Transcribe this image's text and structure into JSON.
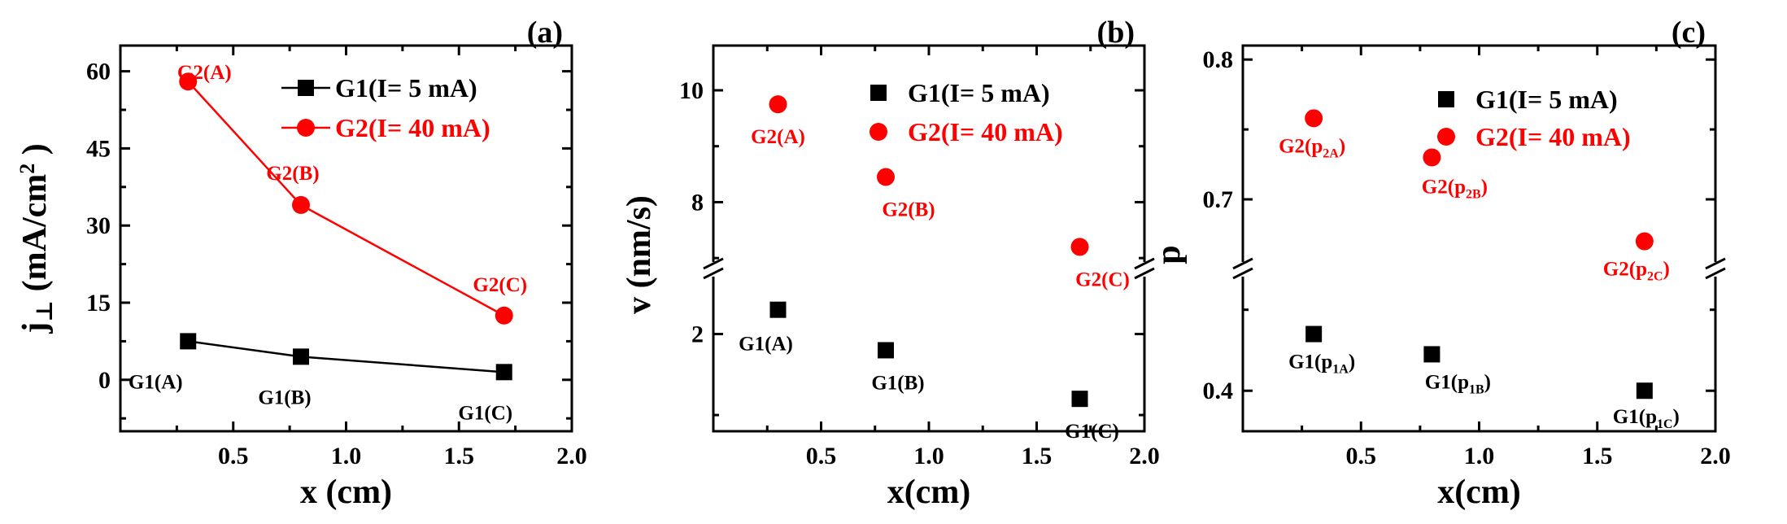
{
  "chart_data": [
    {
      "panel": "(a)",
      "type": "line",
      "xlabel": "x (cm)",
      "ylabel_main": "j",
      "ylabel_sub": "⊥",
      "ylabel_unit_open": " (mA/cm",
      "ylabel_sup": "2",
      "ylabel_unit_close": " )",
      "xlim": [
        0,
        2.0
      ],
      "ylim": [
        -10,
        65
      ],
      "xticks": [
        "0.5",
        "1.0",
        "1.5",
        "2.0"
      ],
      "yticks": [
        "0",
        "15",
        "30",
        "45",
        "60"
      ],
      "legend": [
        {
          "label": "G1(I= 5 mA)",
          "color": "#000000",
          "marker": "square"
        },
        {
          "label": "G2(I= 40 mA)",
          "color": "#ff0000",
          "marker": "circle"
        }
      ],
      "series": [
        {
          "name": "G1(I= 5 mA)",
          "color": "#000000",
          "marker": "square",
          "x": [
            0.3,
            0.8,
            1.7
          ],
          "y": [
            7.5,
            4.5,
            1.5
          ],
          "point_labels": [
            {
              "t": "G1(A)"
            },
            {
              "t": "G1(B)"
            },
            {
              "t": "G1(C)"
            }
          ]
        },
        {
          "name": "G2(I= 40 mA)",
          "color": "#ff0000",
          "marker": "circle",
          "x": [
            0.3,
            0.8,
            1.7
          ],
          "y": [
            58,
            34,
            12.5
          ],
          "point_labels": [
            {
              "t": "G2(A)"
            },
            {
              "t": "G2(B)"
            },
            {
              "t": "G2(C)"
            }
          ]
        }
      ]
    },
    {
      "panel": "(b)",
      "type": "scatter",
      "xlabel": "x(cm)",
      "ylabel": "v (nm/s)",
      "xlim": [
        0,
        2.0
      ],
      "axis_break": true,
      "ylim_lower": [
        0.8,
        2.8
      ],
      "ylim_upper": [
        6.8,
        10.8
      ],
      "xticks": [
        "0.5",
        "1.0",
        "1.5",
        "2.0"
      ],
      "yticks_lower": [
        "2"
      ],
      "yticks_upper": [
        "8",
        "10"
      ],
      "legend": [
        {
          "label": "G1(I= 5 mA)",
          "color": "#000000",
          "marker": "square"
        },
        {
          "label": "G2(I= 40 mA)",
          "color": "#ff0000",
          "marker": "circle"
        }
      ],
      "series": [
        {
          "name": "G1(I= 5 mA)",
          "color": "#000000",
          "marker": "square",
          "x": [
            0.3,
            0.8,
            1.7
          ],
          "y": [
            2.3,
            1.8,
            1.2
          ],
          "point_labels": [
            {
              "t": "G1(A)"
            },
            {
              "t": "G1(B)"
            },
            {
              "t": "G1(C)"
            }
          ]
        },
        {
          "name": "G2(I= 40 mA)",
          "color": "#ff0000",
          "marker": "circle",
          "x": [
            0.3,
            0.8,
            1.7
          ],
          "y": [
            9.75,
            8.45,
            7.2
          ],
          "point_labels": [
            {
              "t": "G2(A)"
            },
            {
              "t": "G2(B)"
            },
            {
              "t": "G2(C)"
            }
          ]
        }
      ]
    },
    {
      "panel": "(c)",
      "type": "scatter",
      "xlabel": "x(cm)",
      "ylabel": "p",
      "xlim": [
        0,
        2.0
      ],
      "axis_break": true,
      "ylim_lower": [
        0.35,
        0.55
      ],
      "ylim_upper": [
        0.65,
        0.81
      ],
      "xticks": [
        "0.5",
        "1.0",
        "1.5",
        "2.0"
      ],
      "yticks_lower": [
        "0.4"
      ],
      "yticks_upper": [
        "0.7",
        "0.8"
      ],
      "legend": [
        {
          "label": "G1(I= 5 mA)",
          "color": "#000000",
          "marker": "square"
        },
        {
          "label": "G2(I= 40 mA)",
          "color": "#ff0000",
          "marker": "circle"
        }
      ],
      "series": [
        {
          "name": "G1(I= 5 mA)",
          "color": "#000000",
          "marker": "square",
          "x": [
            0.3,
            0.8,
            1.7
          ],
          "y": [
            0.47,
            0.445,
            0.4
          ],
          "point_labels": [
            {
              "t": "G1(p",
              "s": "1A",
              "e": ")"
            },
            {
              "t": "G1(p",
              "s": "1B",
              "e": ")"
            },
            {
              "t": "G1(p",
              "s": "1C",
              "e": ")"
            }
          ]
        },
        {
          "name": "G2(I= 40 mA)",
          "color": "#ff0000",
          "marker": "circle",
          "x": [
            0.3,
            0.8,
            1.7
          ],
          "y": [
            0.758,
            0.73,
            0.67
          ],
          "point_labels": [
            {
              "t": "G2(p",
              "s": "2A",
              "e": ")"
            },
            {
              "t": "G2(p",
              "s": "2B",
              "e": ")"
            },
            {
              "t": "G2(p",
              "s": "2C",
              "e": ")"
            }
          ]
        }
      ]
    }
  ]
}
